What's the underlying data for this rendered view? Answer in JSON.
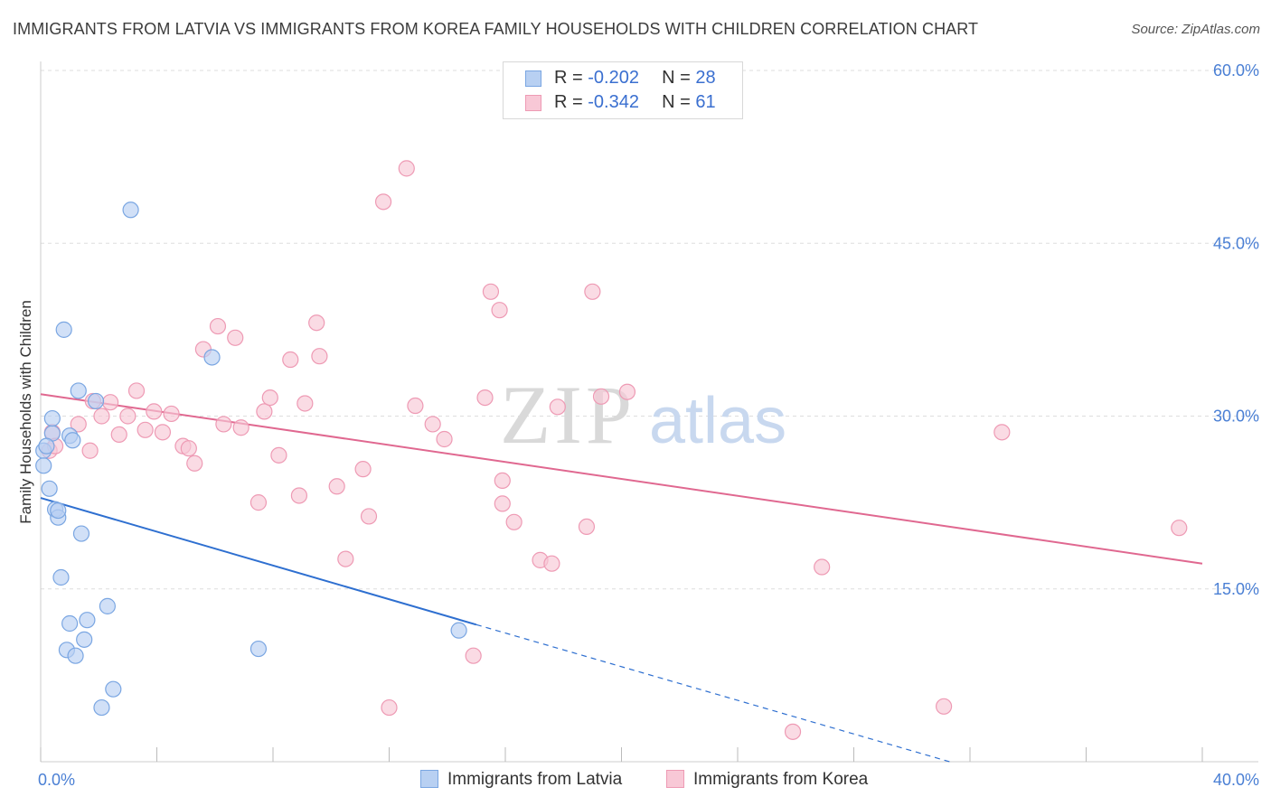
{
  "title": "IMMIGRANTS FROM LATVIA VS IMMIGRANTS FROM KOREA FAMILY HOUSEHOLDS WITH CHILDREN CORRELATION CHART",
  "source": "Source: ZipAtlas.com",
  "watermark": {
    "zip": "ZIP",
    "atlas": "atlas"
  },
  "legend": {
    "latvia": {
      "r_label": "R = ",
      "r_value": "-0.202",
      "n_label": "N = ",
      "n_value": "28"
    },
    "korea": {
      "r_label": "R = ",
      "r_value": "-0.342",
      "n_label": "N = ",
      "n_value": "61"
    }
  },
  "colors": {
    "latvia_fill": "#b8d0f2",
    "latvia_stroke": "#7aa6e2",
    "latvia_line": "#2e6fd0",
    "korea_fill": "#f8c8d6",
    "korea_stroke": "#ee9ab4",
    "korea_line": "#e06890",
    "axis_label": "#4a7fd4",
    "grid": "#dddddd"
  },
  "chart_data": {
    "type": "scatter",
    "title": "IMMIGRANTS FROM LATVIA VS IMMIGRANTS FROM KOREA FAMILY HOUSEHOLDS WITH CHILDREN CORRELATION CHART",
    "xlabel": "",
    "ylabel": "Family Households with Children",
    "xlim": [
      0,
      40
    ],
    "ylim": [
      0,
      60
    ],
    "x_tick_labels": [
      "0.0%",
      "40.0%"
    ],
    "y_ticks": [
      15,
      30,
      45,
      60
    ],
    "y_tick_labels": [
      "15.0%",
      "30.0%",
      "45.0%",
      "60.0%"
    ],
    "grid": true,
    "series": [
      {
        "name": "Immigrants from Latvia",
        "trend": {
          "x0": 0,
          "y0": 22.9,
          "x1": 15.0,
          "y1": 11.9,
          "dash_to_x": 31.3,
          "dash_to_y": 0
        },
        "points": [
          [
            0.1,
            27.0
          ],
          [
            0.1,
            25.7
          ],
          [
            0.3,
            23.7
          ],
          [
            0.4,
            28.5
          ],
          [
            0.4,
            29.8
          ],
          [
            0.5,
            21.9
          ],
          [
            0.6,
            21.2
          ],
          [
            0.6,
            21.8
          ],
          [
            0.7,
            16.0
          ],
          [
            0.8,
            37.5
          ],
          [
            0.9,
            9.7
          ],
          [
            1.0,
            12.0
          ],
          [
            1.0,
            28.3
          ],
          [
            1.1,
            27.9
          ],
          [
            1.2,
            9.2
          ],
          [
            1.3,
            32.2
          ],
          [
            1.4,
            19.8
          ],
          [
            1.5,
            10.6
          ],
          [
            1.6,
            12.3
          ],
          [
            1.9,
            31.3
          ],
          [
            2.1,
            4.7
          ],
          [
            2.3,
            13.5
          ],
          [
            2.5,
            6.3
          ],
          [
            3.1,
            47.9
          ],
          [
            5.9,
            35.1
          ],
          [
            7.5,
            9.8
          ],
          [
            14.4,
            11.4
          ],
          [
            0.2,
            27.4
          ]
        ]
      },
      {
        "name": "Immigrants from Korea",
        "trend": {
          "x0": 0,
          "y0": 31.9,
          "x1": 40,
          "y1": 17.2
        },
        "points": [
          [
            0.3,
            27.0
          ],
          [
            0.4,
            28.6
          ],
          [
            0.5,
            27.4
          ],
          [
            1.3,
            29.3
          ],
          [
            1.7,
            27.0
          ],
          [
            1.8,
            31.3
          ],
          [
            2.1,
            30.0
          ],
          [
            2.4,
            31.2
          ],
          [
            2.7,
            28.4
          ],
          [
            3.0,
            30.0
          ],
          [
            3.3,
            32.2
          ],
          [
            3.6,
            28.8
          ],
          [
            3.9,
            30.4
          ],
          [
            4.2,
            28.6
          ],
          [
            4.5,
            30.2
          ],
          [
            4.9,
            27.4
          ],
          [
            5.1,
            27.2
          ],
          [
            5.3,
            25.9
          ],
          [
            5.6,
            35.8
          ],
          [
            6.1,
            37.8
          ],
          [
            6.3,
            29.3
          ],
          [
            6.7,
            36.8
          ],
          [
            6.9,
            29.0
          ],
          [
            7.5,
            22.5
          ],
          [
            7.7,
            30.4
          ],
          [
            7.9,
            31.6
          ],
          [
            8.2,
            26.6
          ],
          [
            8.6,
            34.9
          ],
          [
            8.9,
            23.1
          ],
          [
            9.1,
            31.1
          ],
          [
            9.5,
            38.1
          ],
          [
            9.6,
            35.2
          ],
          [
            10.2,
            23.9
          ],
          [
            10.5,
            17.6
          ],
          [
            11.1,
            25.4
          ],
          [
            11.3,
            21.3
          ],
          [
            11.8,
            48.6
          ],
          [
            12.0,
            4.7
          ],
          [
            12.6,
            51.5
          ],
          [
            12.9,
            30.9
          ],
          [
            13.5,
            29.3
          ],
          [
            13.9,
            28.0
          ],
          [
            14.9,
            9.2
          ],
          [
            15.3,
            31.6
          ],
          [
            15.5,
            40.8
          ],
          [
            15.8,
            39.2
          ],
          [
            15.9,
            22.4
          ],
          [
            15.9,
            24.4
          ],
          [
            16.3,
            20.8
          ],
          [
            17.2,
            17.5
          ],
          [
            17.6,
            17.2
          ],
          [
            17.8,
            30.8
          ],
          [
            18.8,
            20.4
          ],
          [
            19.0,
            40.8
          ],
          [
            19.3,
            31.7
          ],
          [
            20.2,
            32.1
          ],
          [
            25.9,
            2.6
          ],
          [
            26.9,
            16.9
          ],
          [
            31.1,
            4.8
          ],
          [
            33.1,
            28.6
          ],
          [
            39.2,
            20.3
          ]
        ]
      }
    ]
  }
}
